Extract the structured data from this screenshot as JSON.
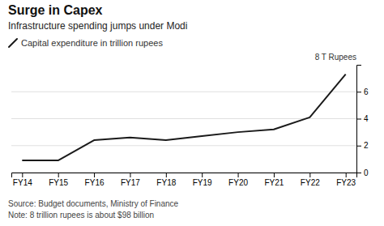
{
  "chart_data": {
    "type": "line",
    "title": "Surge in Capex",
    "subtitle": "Infrastructure spending jumps under Modi",
    "y_label": "8 T Rupees",
    "annotations": [
      "Source: Budget documents, Ministry of Finance",
      "Note: 8 trillion rupees is about $98 billion"
    ],
    "categories": [
      "FY14",
      "FY15",
      "FY16",
      "FY17",
      "FY18",
      "FY19",
      "FY20",
      "FY21",
      "FY22",
      "FY23"
    ],
    "series": [
      {
        "name": "Capital expenditure in trillion rupees",
        "color": "#1a1a1a",
        "values": [
          0.9,
          0.9,
          2.4,
          2.6,
          2.4,
          2.7,
          3.0,
          3.2,
          4.1,
          7.3
        ]
      }
    ],
    "ylim": [
      0,
      8.0
    ],
    "yticks": [
      0,
      2,
      4,
      6
    ],
    "grid": true,
    "legend": "upper left"
  }
}
